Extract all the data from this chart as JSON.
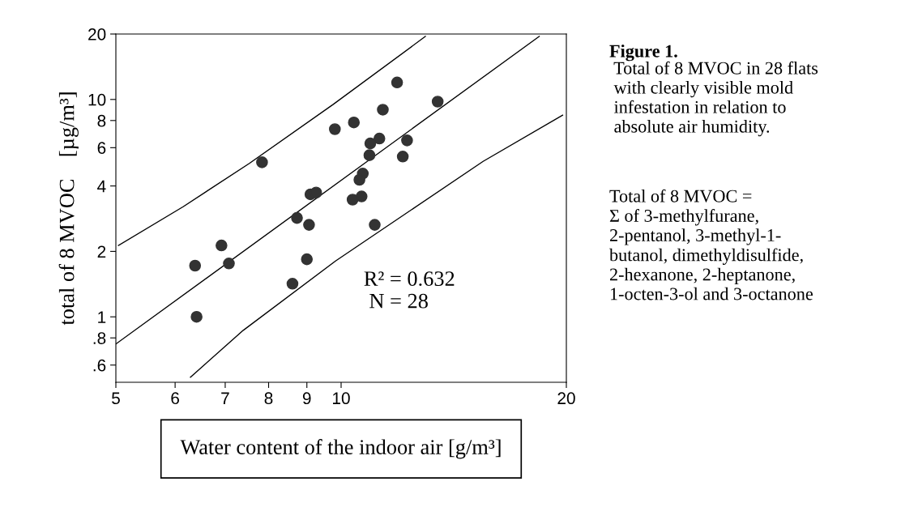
{
  "chart_data": {
    "type": "scatter",
    "xlabel": "Water content of the indoor air [g/m³]",
    "ylabel": "total of 8 MVOC    [µg/m³]",
    "log": "xy",
    "xlim": [
      5,
      20
    ],
    "ylim": [
      0.5,
      20
    ],
    "xticks": [
      5,
      6,
      7,
      8,
      9,
      10,
      20
    ],
    "yticks": [
      {
        "value": 0.6,
        "label": ".6"
      },
      {
        "value": 0.8,
        "label": ".8"
      },
      1,
      2,
      4,
      6,
      8,
      10,
      20
    ],
    "grid": false,
    "legend": false,
    "series": [
      {
        "marker": "circle",
        "color": "#333333",
        "x": [
          7.84,
          9.81,
          9.1,
          9.26,
          8.73,
          9.06,
          6.92,
          9.0,
          6.38,
          7.08,
          6.41,
          8.61,
          11.88,
          13.46,
          11.37,
          10.4,
          11.25,
          12.25,
          10.94,
          10.91,
          12.09,
          10.69,
          10.58,
          10.65,
          10.36,
          11.09
        ],
        "values": [
          5.14,
          7.3,
          3.66,
          3.73,
          2.85,
          2.65,
          2.13,
          1.84,
          1.72,
          1.76,
          1.0,
          1.42,
          11.97,
          9.77,
          8.97,
          7.84,
          6.61,
          6.48,
          6.28,
          5.54,
          5.46,
          4.56,
          4.27,
          3.58,
          3.46,
          2.65
        ]
      },
      {
        "type": "line",
        "color": "#000000",
        "x": [
          5,
          18.4
        ],
        "values": [
          0.75,
          19.5
        ]
      },
      {
        "type": "line",
        "color": "#000000",
        "x": [
          5.04,
          6.15,
          7.54,
          9.76,
          12.96
        ],
        "values": [
          2.13,
          3.21,
          5.08,
          9.49,
          19.5
        ]
      },
      {
        "type": "line",
        "color": "#000000",
        "x": [
          6.29,
          7.4,
          9.83,
          15.48,
          19.77
        ],
        "values": [
          0.528,
          0.867,
          1.806,
          5.19,
          8.47
        ]
      }
    ],
    "annotations": [
      "R² = 0.632\n N = 28",
      "Figure 1.",
      " Total of 8 MVOC in 28 flats\n with clearly visible mold\n infestation in relation to\n absolute air humidity.",
      "Total of 8 MVOC =\nΣ of 3-methylfurane,\n2-pentanol, 3-methyl-1-\nbutanol, dimethyldisulfide,\n2-hexanone, 2-heptanone,\n1-octen-3-ol and 3-octanone"
    ]
  }
}
